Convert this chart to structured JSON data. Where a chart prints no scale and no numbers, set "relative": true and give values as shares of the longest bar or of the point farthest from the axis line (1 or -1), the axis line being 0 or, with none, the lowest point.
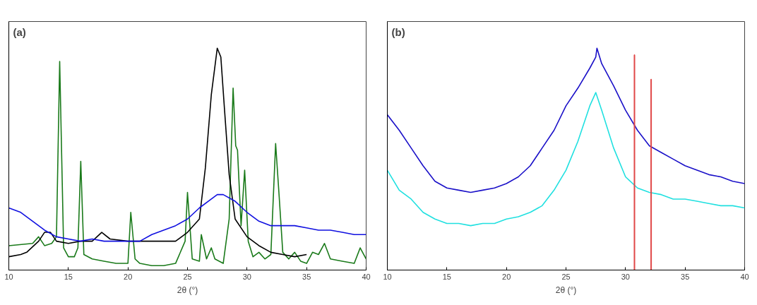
{
  "chart_data": [
    {
      "type": "line",
      "title": "(a)",
      "xlabel": "2θ (°)",
      "relative": true,
      "xlim": [
        10,
        40
      ],
      "xticks": [
        10,
        15,
        20,
        25,
        30,
        35,
        40
      ],
      "tick_labels": "x",
      "series": [
        {
          "color": "#1a7a1a",
          "x": [
            10,
            12,
            12.5,
            13,
            13.6,
            14.0,
            14.27,
            14.6,
            15,
            15.5,
            15.8,
            16.04,
            16.3,
            17,
            18,
            19,
            20,
            20.24,
            20.6,
            21,
            22,
            23,
            24,
            24.8,
            25.0,
            25.4,
            26,
            26.16,
            26.6,
            27.0,
            27.3,
            28,
            28.5,
            28.83,
            29.05,
            29.2,
            29.5,
            29.8,
            30.1,
            30.5,
            31,
            31.5,
            32,
            32.4,
            32.7,
            33,
            33.5,
            34,
            34.5,
            35,
            35.5,
            36,
            36.5,
            37,
            38,
            39,
            39.5,
            40
          ],
          "values": [
            0.11,
            0.12,
            0.15,
            0.11,
            0.12,
            0.15,
            0.94,
            0.1,
            0.06,
            0.06,
            0.1,
            0.49,
            0.07,
            0.05,
            0.04,
            0.03,
            0.03,
            0.26,
            0.05,
            0.03,
            0.02,
            0.02,
            0.03,
            0.13,
            0.35,
            0.05,
            0.04,
            0.16,
            0.05,
            0.1,
            0.05,
            0.03,
            0.23,
            0.82,
            0.56,
            0.54,
            0.2,
            0.45,
            0.13,
            0.06,
            0.08,
            0.05,
            0.07,
            0.57,
            0.33,
            0.08,
            0.05,
            0.08,
            0.04,
            0.03,
            0.08,
            0.07,
            0.12,
            0.05,
            0.04,
            0.03,
            0.1,
            0.05
          ]
        },
        {
          "color": "#000000",
          "x": [
            10,
            11,
            11.5,
            12.5,
            13,
            13.5,
            14,
            15,
            16,
            17,
            17.8,
            18.5,
            20,
            22,
            24,
            25,
            26,
            26.5,
            27,
            27.5,
            27.8,
            28.1,
            28.5,
            29,
            30,
            31,
            32,
            33,
            34,
            35
          ],
          "values": [
            0.06,
            0.07,
            0.08,
            0.13,
            0.17,
            0.17,
            0.13,
            0.12,
            0.13,
            0.13,
            0.17,
            0.14,
            0.13,
            0.13,
            0.13,
            0.17,
            0.23,
            0.46,
            0.79,
            1.0,
            0.96,
            0.73,
            0.43,
            0.23,
            0.15,
            0.11,
            0.08,
            0.07,
            0.06,
            0.07
          ]
        },
        {
          "color": "#1010e0",
          "x": [
            10,
            11,
            12,
            13,
            14,
            15,
            16,
            17,
            18,
            19,
            20,
            21,
            22,
            23,
            24,
            25,
            26,
            27,
            27.5,
            28,
            29,
            30,
            31,
            32,
            33,
            34,
            35,
            36,
            37,
            38,
            39,
            40
          ],
          "values": [
            0.28,
            0.26,
            0.22,
            0.18,
            0.15,
            0.14,
            0.13,
            0.14,
            0.13,
            0.13,
            0.13,
            0.13,
            0.16,
            0.18,
            0.2,
            0.23,
            0.28,
            0.32,
            0.34,
            0.34,
            0.31,
            0.26,
            0.22,
            0.2,
            0.2,
            0.2,
            0.19,
            0.18,
            0.18,
            0.17,
            0.16,
            0.16
          ]
        }
      ]
    },
    {
      "type": "line",
      "title": "(b)",
      "xlabel": "2θ (°)",
      "relative": true,
      "xlim": [
        10,
        40
      ],
      "xticks": [
        10,
        15,
        20,
        25,
        30,
        35,
        40
      ],
      "tick_labels": "x",
      "series": [
        {
          "color": "#1a10c8",
          "x": [
            10,
            11,
            12,
            13,
            14,
            15,
            16,
            17,
            18,
            19,
            20,
            21,
            22,
            23,
            24,
            25,
            26,
            27,
            27.5,
            27.6,
            28,
            29,
            30,
            31,
            32,
            33,
            34,
            35,
            36,
            37,
            38,
            39,
            40
          ],
          "values": [
            0.7,
            0.63,
            0.55,
            0.47,
            0.4,
            0.37,
            0.36,
            0.35,
            0.36,
            0.37,
            0.39,
            0.42,
            0.47,
            0.55,
            0.63,
            0.74,
            0.82,
            0.91,
            0.96,
            1.0,
            0.93,
            0.83,
            0.72,
            0.63,
            0.56,
            0.53,
            0.5,
            0.47,
            0.45,
            0.43,
            0.42,
            0.4,
            0.39
          ]
        },
        {
          "color": "#20e0e0",
          "x": [
            10,
            11,
            12,
            13,
            14,
            15,
            16,
            17,
            18,
            19,
            20,
            21,
            22,
            23,
            24,
            25,
            26,
            27,
            27.5,
            28,
            29,
            30,
            31,
            32,
            33,
            34,
            35,
            36,
            37,
            38,
            39,
            40
          ],
          "values": [
            0.45,
            0.36,
            0.32,
            0.26,
            0.23,
            0.21,
            0.21,
            0.2,
            0.21,
            0.21,
            0.23,
            0.24,
            0.26,
            0.29,
            0.36,
            0.45,
            0.58,
            0.74,
            0.8,
            0.72,
            0.55,
            0.42,
            0.37,
            0.35,
            0.34,
            0.32,
            0.32,
            0.31,
            0.3,
            0.29,
            0.29,
            0.28
          ]
        },
        {
          "type": "bar",
          "color": "#e04848",
          "x": [
            30.75,
            32.15
          ],
          "values": [
            0.97,
            0.86
          ]
        }
      ]
    }
  ]
}
